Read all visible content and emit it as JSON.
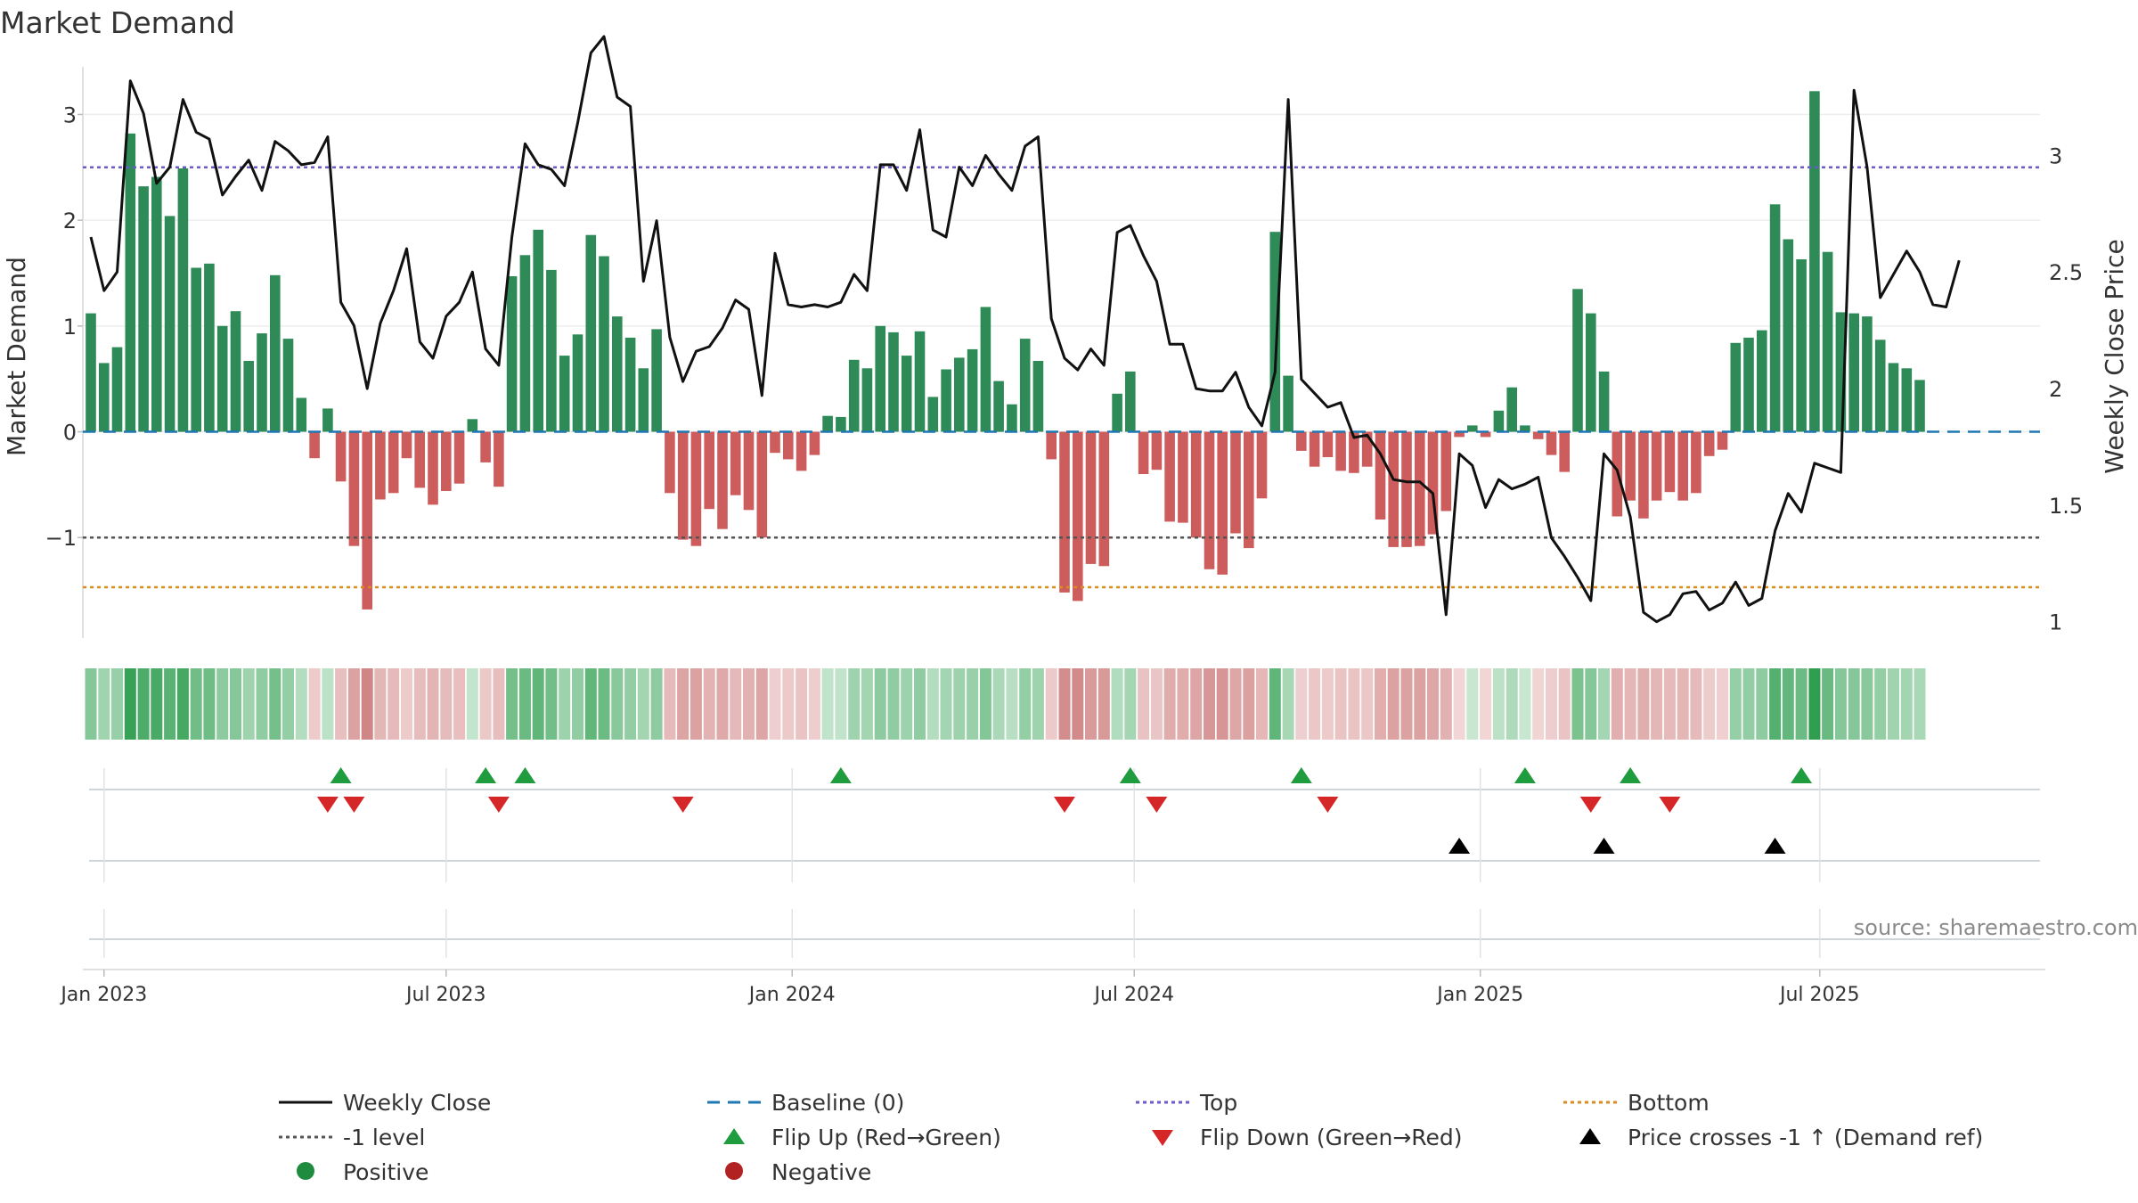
{
  "chart_data": {
    "type": "bar",
    "title": "Market Demand",
    "ylabel": "Market Demand",
    "ylabel_right": "Weekly Close Price",
    "source": "source: sharemaestro.com",
    "ylim": [
      -1.95,
      3.45
    ],
    "y2lim": [
      0.93,
      3.38
    ],
    "yticks": [
      {
        "value": 3,
        "label": "3"
      },
      {
        "value": 2,
        "label": "2"
      },
      {
        "value": 1,
        "label": "1"
      },
      {
        "value": 0,
        "label": "0"
      },
      {
        "value": -1,
        "label": "−1"
      }
    ],
    "y2ticks": [
      {
        "value": 3,
        "label": "3"
      },
      {
        "value": 2.5,
        "label": "2.5"
      },
      {
        "value": 2,
        "label": "2"
      },
      {
        "value": 1.5,
        "label": "1.5"
      },
      {
        "value": 1,
        "label": "1"
      }
    ],
    "xticks": [
      {
        "week": 1,
        "label": "Jan 2023"
      },
      {
        "week": 27,
        "label": "Jul 2023"
      },
      {
        "week": 53.3,
        "label": "Jan 2024"
      },
      {
        "week": 79.3,
        "label": "Jul 2024"
      },
      {
        "week": 105.6,
        "label": "Jan 2025"
      },
      {
        "week": 131.4,
        "label": "Jul 2025"
      }
    ],
    "reference_lines": {
      "top": 2.5,
      "bottom": -1.47,
      "minus_one": -1,
      "baseline": 0
    },
    "demand": [
      1.12,
      0.65,
      0.8,
      2.82,
      2.32,
      2.41,
      2.04,
      2.49,
      1.55,
      1.59,
      1.0,
      1.14,
      0.67,
      0.93,
      1.48,
      0.88,
      0.32,
      -0.25,
      0.22,
      -0.47,
      -1.08,
      -1.68,
      -0.64,
      -0.58,
      -0.25,
      -0.53,
      -0.69,
      -0.56,
      -0.49,
      0.12,
      -0.29,
      -0.52,
      1.47,
      1.67,
      1.91,
      1.53,
      0.72,
      0.92,
      1.86,
      1.66,
      1.09,
      0.89,
      0.6,
      0.97,
      -0.58,
      -1.02,
      -1.08,
      -0.73,
      -0.92,
      -0.6,
      -0.74,
      -1.0,
      -0.2,
      -0.26,
      -0.37,
      -0.22,
      0.15,
      0.14,
      0.68,
      0.6,
      1.0,
      0.94,
      0.72,
      0.95,
      0.33,
      0.59,
      0.7,
      0.78,
      1.18,
      0.48,
      0.26,
      0.88,
      0.67,
      -0.26,
      -1.52,
      -1.6,
      -1.25,
      -1.27,
      0.36,
      0.57,
      -0.4,
      -0.36,
      -0.85,
      -0.86,
      -1.0,
      -1.3,
      -1.35,
      -0.96,
      -1.1,
      -0.63,
      1.89,
      0.53,
      -0.18,
      -0.33,
      -0.24,
      -0.37,
      -0.39,
      -0.33,
      -0.83,
      -1.09,
      -1.09,
      -1.08,
      -0.97,
      -0.75,
      -0.05,
      0.06,
      -0.05,
      0.2,
      0.42,
      0.06,
      -0.07,
      -0.22,
      -0.38,
      1.35,
      1.12,
      0.57,
      -0.8,
      -0.65,
      -0.82,
      -0.65,
      -0.57,
      -0.65,
      -0.58,
      -0.23,
      -0.17,
      0.84,
      0.89,
      0.96,
      2.15,
      1.82,
      1.63,
      3.22,
      1.7,
      1.13,
      1.12,
      1.09,
      0.87,
      0.65,
      0.6,
      0.49
    ],
    "weekly_close": [
      2.65,
      2.42,
      2.5,
      3.32,
      3.18,
      2.88,
      2.95,
      3.24,
      3.1,
      3.07,
      2.83,
      2.91,
      2.98,
      2.85,
      3.06,
      3.02,
      2.96,
      2.97,
      3.08,
      2.37,
      2.27,
      2.0,
      2.28,
      2.42,
      2.6,
      2.2,
      2.13,
      2.31,
      2.37,
      2.5,
      2.17,
      2.1,
      2.65,
      3.05,
      2.96,
      2.94,
      2.87,
      3.14,
      3.44,
      3.51,
      3.25,
      3.21,
      2.46,
      2.72,
      2.22,
      2.03,
      2.16,
      2.18,
      2.26,
      2.38,
      2.34,
      1.97,
      2.58,
      2.36,
      2.35,
      2.36,
      2.35,
      2.37,
      2.49,
      2.42,
      2.96,
      2.96,
      2.85,
      3.11,
      2.68,
      2.65,
      2.95,
      2.87,
      3.0,
      2.92,
      2.85,
      3.04,
      3.08,
      2.3,
      2.13,
      2.08,
      2.17,
      2.1,
      2.67,
      2.7,
      2.57,
      2.46,
      2.19,
      2.19,
      2.0,
      1.99,
      1.99,
      2.07,
      1.92,
      1.84,
      2.07,
      3.24,
      2.04,
      1.98,
      1.92,
      1.94,
      1.79,
      1.8,
      1.72,
      1.61,
      1.6,
      1.6,
      1.55,
      1.03,
      1.72,
      1.67,
      1.49,
      1.61,
      1.57,
      1.59,
      1.62,
      1.36,
      1.28,
      1.19,
      1.09,
      1.72,
      1.65,
      1.45,
      1.04,
      1.0,
      1.03,
      1.12,
      1.13,
      1.05,
      1.08,
      1.17,
      1.07,
      1.1,
      1.39,
      1.55,
      1.47,
      1.68,
      1.66,
      1.64,
      3.28,
      2.95,
      2.39,
      2.49,
      2.59,
      2.5,
      2.36,
      2.35,
      2.55
    ],
    "heat_strip": {
      "description": "per-week demand colour band",
      "source_series": "demand"
    },
    "flip_up_weeks": [
      19,
      30,
      33,
      57,
      79,
      92,
      109,
      117,
      130
    ],
    "flip_down_weeks": [
      18,
      20,
      31,
      45,
      74,
      81,
      94,
      114,
      120
    ],
    "price_cross_weeks": [
      104,
      115,
      128
    ],
    "colors": {
      "positive_bar": "#2e8b57",
      "negative_bar": "#cd5c5c",
      "price_line": "#111111",
      "baseline": "#1f77b4",
      "top": "#6a5acd",
      "bottom": "#e08a1e",
      "minus_one": "#555555",
      "flip_up": "#1e9c3e",
      "flip_down": "#d62728",
      "price_cross": "#000000",
      "positive_dot": "#1e8b3e",
      "negative_dot": "#b22222"
    },
    "legend": {
      "weekly_close": "Weekly Close",
      "baseline": "Baseline (0)",
      "top": "Top",
      "bottom": "Bottom",
      "minus_one": "-1 level",
      "flip_up": "Flip Up (Red→Green)",
      "flip_down": "Flip Down (Green→Red)",
      "price_cross": "Price crosses -1 ↑ (Demand ref)",
      "positive": "Positive",
      "negative": "Negative"
    }
  }
}
